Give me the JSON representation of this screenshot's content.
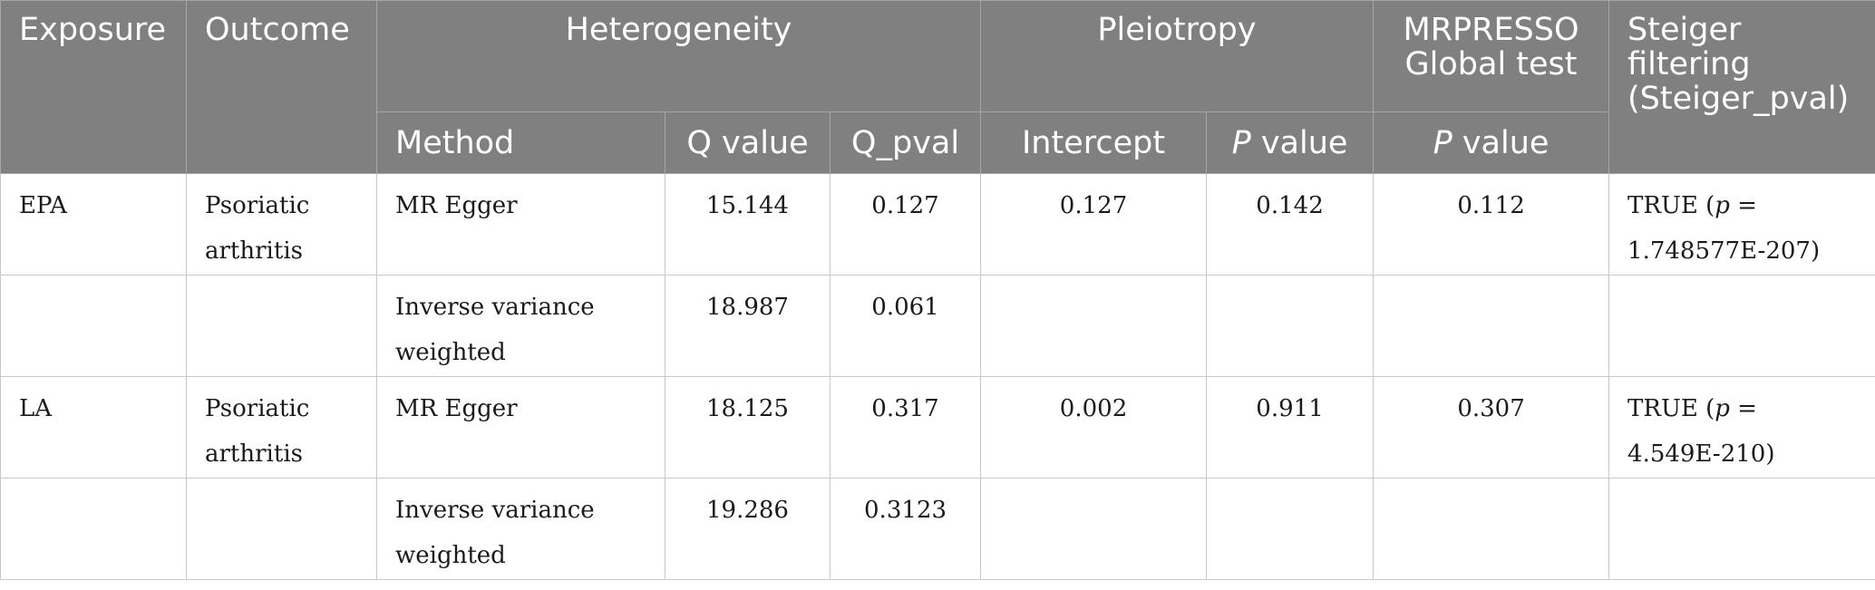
{
  "header": {
    "exposure": "Exposure",
    "outcome": "Outcome",
    "heterogeneity": "Heterogeneity",
    "pleiotropy": "Pleiotropy",
    "mrpresso_line1": "MRPRESSO",
    "mrpresso_line2": "Global test",
    "steiger": "Steiger filtering (Steiger_pval)",
    "method": "Method",
    "q_value": "Q value",
    "q_pval": "Q_pval",
    "intercept": "Intercept",
    "p_italic": "P",
    "p_value_suffix": " value"
  },
  "rows": [
    {
      "exposure": "EPA",
      "outcome": "Psoriatic arthritis",
      "method": "MR Egger",
      "q_value": "15.144",
      "q_pval": "0.127",
      "intercept": "0.127",
      "pleiotropy_p": "0.142",
      "mrpresso_p": "0.112",
      "steiger_prefix": "TRUE (",
      "steiger_p": "p",
      "steiger_value": " = 1.748577E-207)"
    },
    {
      "exposure": "",
      "outcome": "",
      "method": "Inverse variance weighted",
      "q_value": "18.987",
      "q_pval": "0.061",
      "intercept": "",
      "pleiotropy_p": "",
      "mrpresso_p": "",
      "steiger_prefix": "",
      "steiger_p": "",
      "steiger_value": ""
    },
    {
      "exposure": "LA",
      "outcome": "Psoriatic arthritis",
      "method": "MR Egger",
      "q_value": "18.125",
      "q_pval": "0.317",
      "intercept": "0.002",
      "pleiotropy_p": "0.911",
      "mrpresso_p": "0.307",
      "steiger_prefix": "TRUE (",
      "steiger_p": "p",
      "steiger_value": " = 4.549E-210)"
    },
    {
      "exposure": "",
      "outcome": "",
      "method": "Inverse variance weighted",
      "q_value": "19.286",
      "q_pval": "0.3123",
      "intercept": "",
      "pleiotropy_p": "",
      "mrpresso_p": "",
      "steiger_prefix": "",
      "steiger_p": "",
      "steiger_value": ""
    }
  ]
}
